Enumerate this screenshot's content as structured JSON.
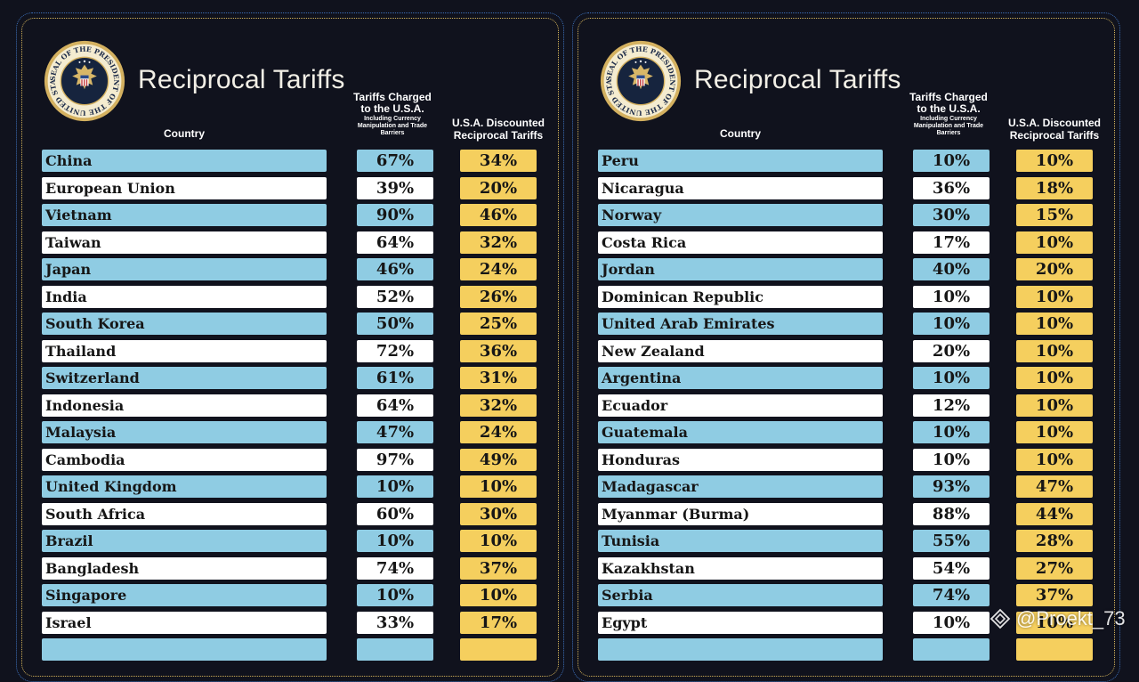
{
  "panels": [
    {
      "title": "Reciprocal Tariffs",
      "seal_text": "SEAL OF THE PRESIDENT OF THE UNITED STATES",
      "headers": {
        "country": "Country",
        "charged": "Tariffs Charged to the U.S.A.",
        "charged_sub": "Including Currency Manipulation and Trade Barriers",
        "discounted": "U.S.A. Discounted Reciprocal Tariffs"
      },
      "rows": [
        {
          "country": "China",
          "charged": "67%",
          "discounted": "34%"
        },
        {
          "country": "European Union",
          "charged": "39%",
          "discounted": "20%"
        },
        {
          "country": "Vietnam",
          "charged": "90%",
          "discounted": "46%"
        },
        {
          "country": "Taiwan",
          "charged": "64%",
          "discounted": "32%"
        },
        {
          "country": "Japan",
          "charged": "46%",
          "discounted": "24%"
        },
        {
          "country": "India",
          "charged": "52%",
          "discounted": "26%"
        },
        {
          "country": "South Korea",
          "charged": "50%",
          "discounted": "25%"
        },
        {
          "country": "Thailand",
          "charged": "72%",
          "discounted": "36%"
        },
        {
          "country": "Switzerland",
          "charged": "61%",
          "discounted": "31%"
        },
        {
          "country": "Indonesia",
          "charged": "64%",
          "discounted": "32%"
        },
        {
          "country": "Malaysia",
          "charged": "47%",
          "discounted": "24%"
        },
        {
          "country": "Cambodia",
          "charged": "97%",
          "discounted": "49%"
        },
        {
          "country": "United Kingdom",
          "charged": "10%",
          "discounted": "10%"
        },
        {
          "country": "South Africa",
          "charged": "60%",
          "discounted": "30%"
        },
        {
          "country": "Brazil",
          "charged": "10%",
          "discounted": "10%"
        },
        {
          "country": "Bangladesh",
          "charged": "74%",
          "discounted": "37%"
        },
        {
          "country": "Singapore",
          "charged": "10%",
          "discounted": "10%"
        },
        {
          "country": "Israel",
          "charged": "33%",
          "discounted": "17%"
        },
        {
          "country": "",
          "charged": "",
          "discounted": ""
        }
      ]
    },
    {
      "title": "Reciprocal Tariffs",
      "seal_text": "SEAL OF THE PRESIDENT OF THE UNITED STATES",
      "headers": {
        "country": "Country",
        "charged": "Tariffs Charged to the U.S.A.",
        "charged_sub": "Including Currency Manipulation and Trade Barriers",
        "discounted": "U.S.A. Discounted Reciprocal Tariffs"
      },
      "rows": [
        {
          "country": "Peru",
          "charged": "10%",
          "discounted": "10%"
        },
        {
          "country": "Nicaragua",
          "charged": "36%",
          "discounted": "18%"
        },
        {
          "country": "Norway",
          "charged": "30%",
          "discounted": "15%"
        },
        {
          "country": "Costa Rica",
          "charged": "17%",
          "discounted": "10%"
        },
        {
          "country": "Jordan",
          "charged": "40%",
          "discounted": "20%"
        },
        {
          "country": "Dominican Republic",
          "charged": "10%",
          "discounted": "10%"
        },
        {
          "country": "United Arab Emirates",
          "charged": "10%",
          "discounted": "10%"
        },
        {
          "country": "New Zealand",
          "charged": "20%",
          "discounted": "10%"
        },
        {
          "country": "Argentina",
          "charged": "10%",
          "discounted": "10%"
        },
        {
          "country": "Ecuador",
          "charged": "12%",
          "discounted": "10%"
        },
        {
          "country": "Guatemala",
          "charged": "10%",
          "discounted": "10%"
        },
        {
          "country": "Honduras",
          "charged": "10%",
          "discounted": "10%"
        },
        {
          "country": "Madagascar",
          "charged": "93%",
          "discounted": "47%"
        },
        {
          "country": "Myanmar (Burma)",
          "charged": "88%",
          "discounted": "44%"
        },
        {
          "country": "Tunisia",
          "charged": "55%",
          "discounted": "28%"
        },
        {
          "country": "Kazakhstan",
          "charged": "54%",
          "discounted": "27%"
        },
        {
          "country": "Serbia",
          "charged": "74%",
          "discounted": "37%"
        },
        {
          "country": "Egypt",
          "charged": "10%",
          "discounted": "10%"
        },
        {
          "country": "",
          "charged": "",
          "discounted": ""
        }
      ]
    }
  ],
  "watermark": "@Proekt_73",
  "colors": {
    "background": "#10121d",
    "row_blue": "#8fcce3",
    "row_white": "#ffffff",
    "discount_yellow": "#f5cf5e",
    "frame_gold": "#d3b35a"
  }
}
